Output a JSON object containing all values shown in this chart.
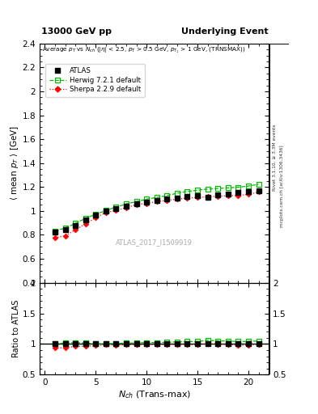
{
  "title_left": "13000 GeV pp",
  "title_right": "Underlying Event",
  "plot_title": "Average p_{T} vs N_{ch} (|#eta| < 2.5, p_{T} > 0.5 GeV, p_{T1} > 1 GeV, (TRNSMAX))",
  "ylabel_main": "<mean p_{T}> [GeV]",
  "ylabel_ratio": "Ratio to ATLAS",
  "xlabel": "N_{ch} (Trans-max)",
  "watermark": "ATLAS_2017_I1509919",
  "right_label_top": "Rivet 3.1.10, ≥ 3.3M events",
  "right_label_bot": "mcplots.cern.ch [arXiv:1306.3436]",
  "ylim_main": [
    0.4,
    2.4
  ],
  "ylim_ratio": [
    0.5,
    2.0
  ],
  "atlas_x": [
    1,
    2,
    3,
    4,
    5,
    6,
    7,
    8,
    9,
    10,
    11,
    12,
    13,
    14,
    15,
    16,
    17,
    18,
    19,
    20,
    21
  ],
  "atlas_y": [
    0.825,
    0.845,
    0.875,
    0.925,
    0.968,
    1.0,
    1.022,
    1.042,
    1.06,
    1.072,
    1.088,
    1.098,
    1.108,
    1.118,
    1.128,
    1.115,
    1.132,
    1.138,
    1.152,
    1.158,
    1.165
  ],
  "atlas_yerr": [
    0.015,
    0.012,
    0.01,
    0.009,
    0.008,
    0.007,
    0.007,
    0.007,
    0.007,
    0.007,
    0.007,
    0.008,
    0.008,
    0.009,
    0.009,
    0.01,
    0.01,
    0.011,
    0.012,
    0.012,
    0.013
  ],
  "herwig_x": [
    1,
    2,
    3,
    4,
    5,
    6,
    7,
    8,
    9,
    10,
    11,
    12,
    13,
    14,
    15,
    16,
    17,
    18,
    19,
    20,
    21
  ],
  "herwig_y": [
    0.832,
    0.857,
    0.895,
    0.938,
    0.972,
    1.003,
    1.032,
    1.058,
    1.078,
    1.098,
    1.113,
    1.128,
    1.148,
    1.163,
    1.173,
    1.183,
    1.188,
    1.193,
    1.198,
    1.208,
    1.222
  ],
  "sherpa_x": [
    1,
    2,
    3,
    4,
    5,
    6,
    7,
    8,
    9,
    10,
    11,
    12,
    13,
    14,
    15,
    16,
    17,
    18,
    19,
    20,
    21
  ],
  "sherpa_y": [
    0.775,
    0.792,
    0.842,
    0.892,
    0.942,
    0.988,
    1.003,
    1.028,
    1.052,
    1.063,
    1.078,
    1.088,
    1.098,
    1.108,
    1.113,
    1.118,
    1.123,
    1.128,
    1.128,
    1.138,
    1.158
  ],
  "atlas_color": "#000000",
  "herwig_color": "#00bb00",
  "sherpa_color": "#ff0000",
  "bg_color": "#ffffff",
  "yticks_main": [
    0.4,
    0.6,
    0.8,
    1.0,
    1.2,
    1.4,
    1.6,
    1.8,
    2.0,
    2.2,
    2.4
  ],
  "yticks_ratio": [
    0.5,
    1.0,
    1.5,
    2.0
  ],
  "xticks": [
    0,
    5,
    10,
    15,
    20
  ]
}
